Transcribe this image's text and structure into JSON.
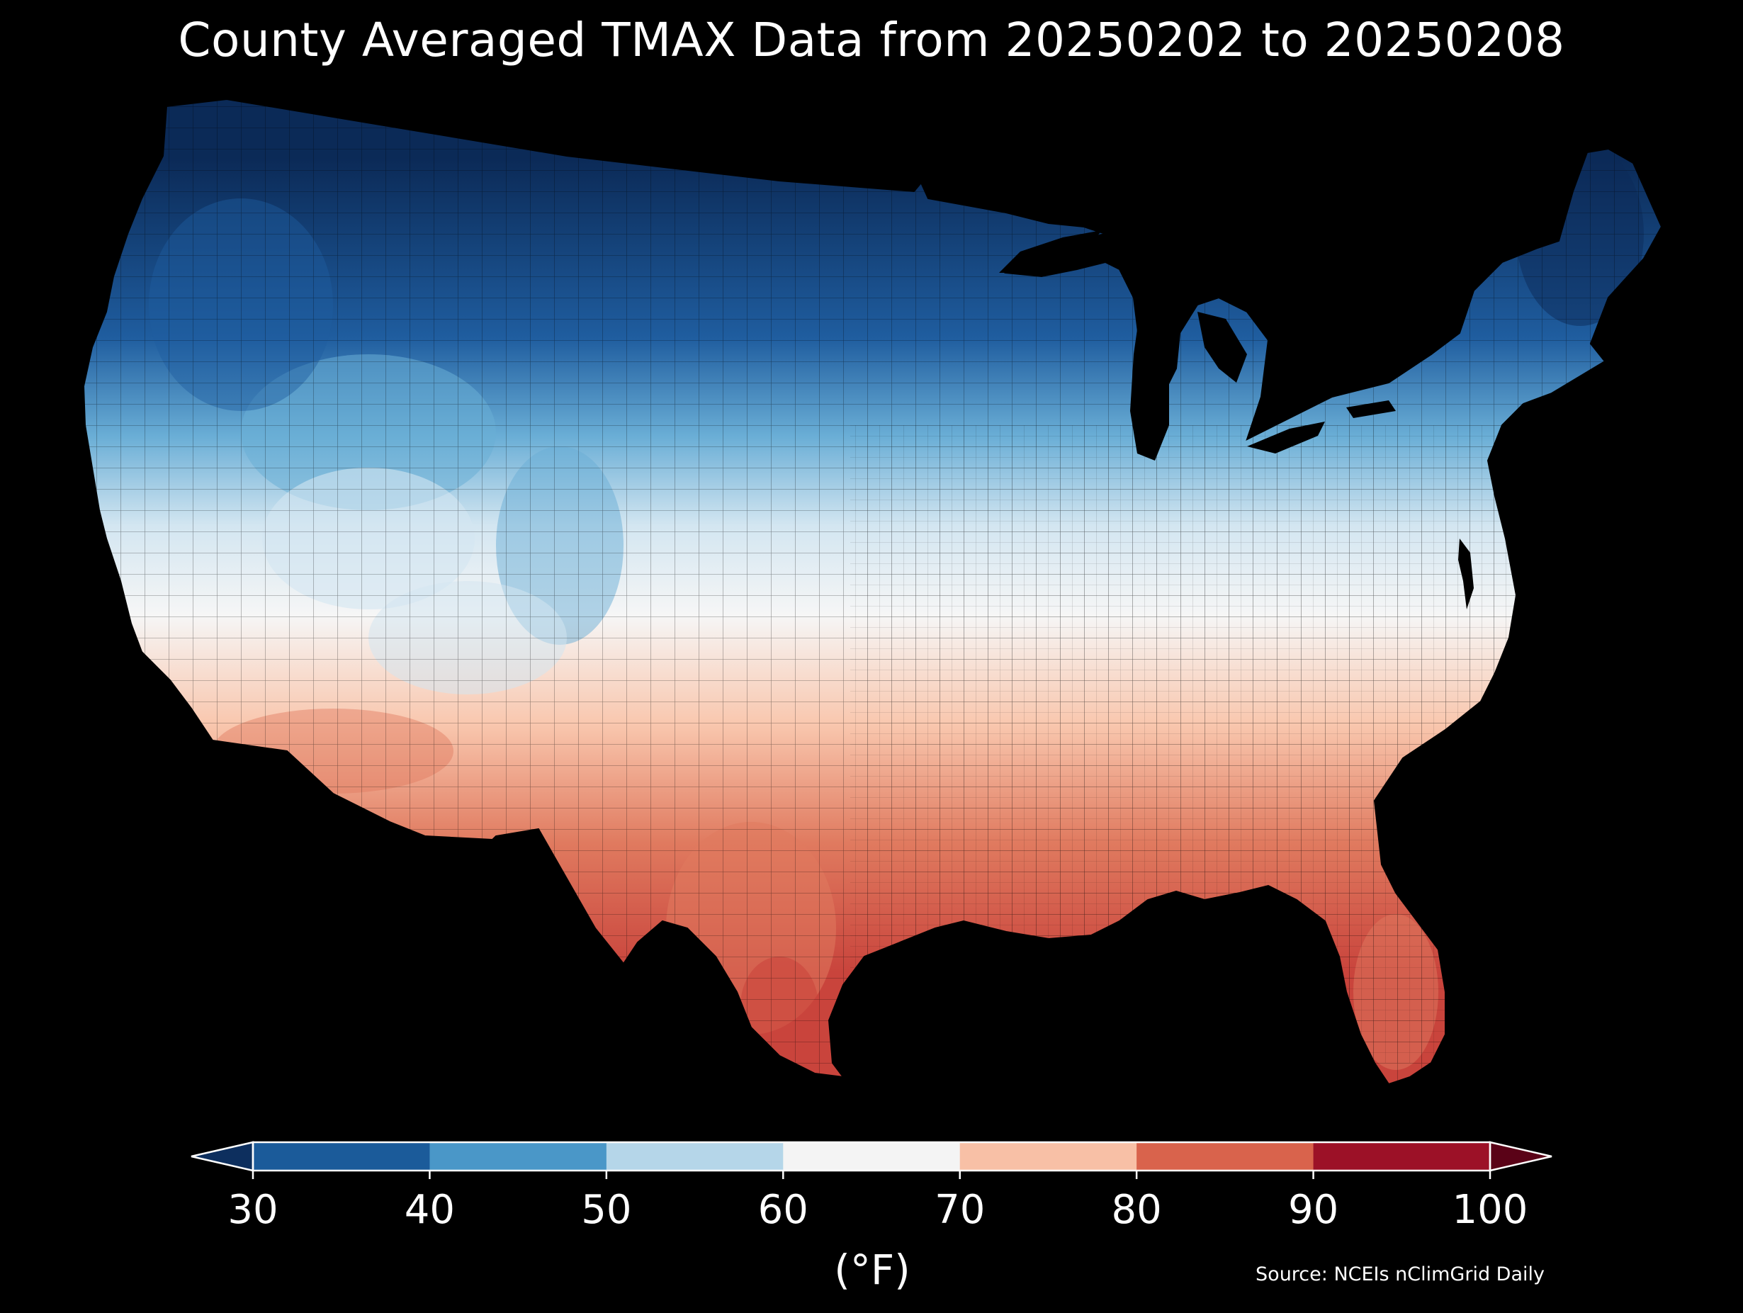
{
  "title": "County Averaged TMAX Data from 20250202 to 20250208",
  "source": "Source: NCEIs nClimGrid Daily",
  "colorbar": {
    "unit_label": "(°F)",
    "ticks": [
      "30",
      "40",
      "50",
      "60",
      "70",
      "80",
      "90",
      "100"
    ],
    "extend": "both",
    "bins": [
      {
        "range": [
          30,
          40
        ],
        "color": "#1b5b9a"
      },
      {
        "range": [
          40,
          50
        ],
        "color": "#4a97c8"
      },
      {
        "range": [
          50,
          60
        ],
        "color": "#b5d6e9"
      },
      {
        "range": [
          60,
          70
        ],
        "color": "#f4f4f4"
      },
      {
        "range": [
          70,
          80
        ],
        "color": "#f8c0a6"
      },
      {
        "range": [
          80,
          90
        ],
        "color": "#d9634c"
      },
      {
        "range": [
          90,
          100
        ],
        "color": "#9c1127"
      }
    ],
    "under_color": "#0d2f5e",
    "over_color": "#5a0217"
  },
  "map": {
    "region": "Contiguous United States",
    "unit": "county",
    "colors": {
      "coldest": "#0b2a57",
      "cold": "#1f5d9f",
      "cool": "#6aaed6",
      "mild": "#d3e6f1",
      "neutral": "#f6f6f6",
      "warm": "#f9c7ae",
      "hot": "#e07a5f",
      "hottest": "#c9443c"
    }
  }
}
